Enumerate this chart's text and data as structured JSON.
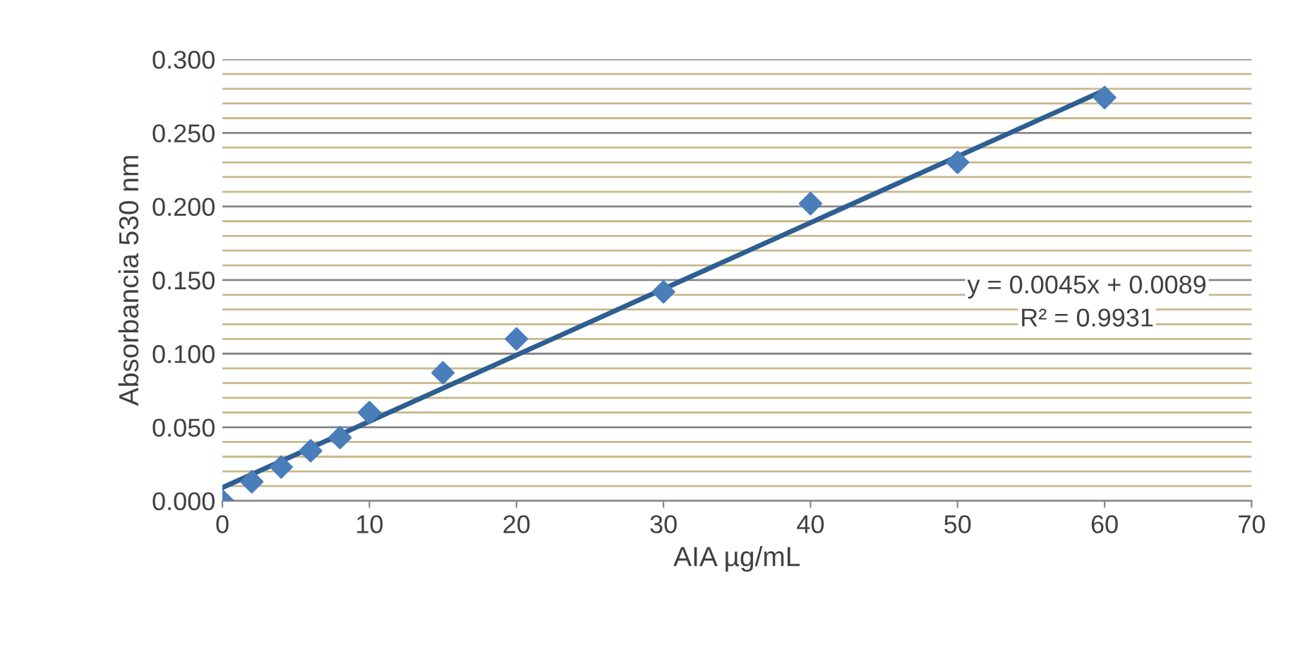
{
  "chart_data": {
    "type": "scatter",
    "xlabel": "AIA µg/mL",
    "ylabel": "Absorbancia 530 nm",
    "x": [
      0,
      2,
      4,
      6,
      8,
      10,
      15,
      20,
      30,
      40,
      50,
      60
    ],
    "series": [
      {
        "color": "#4a7ebb",
        "marker": "diamond",
        "values": [
          0.0,
          0.013,
          0.023,
          0.034,
          0.043,
          0.06,
          0.087,
          0.11,
          0.142,
          0.202,
          0.23,
          0.274
        ]
      },
      {
        "type": "line",
        "color": "#2e5e92",
        "marker": "none",
        "x": [
          0,
          60
        ],
        "values": [
          0.009,
          0.279
        ]
      }
    ],
    "annotations": [
      "y = 0.0045x + 0.0089",
      "R² = 0.9931"
    ],
    "xlim": [
      0,
      70
    ],
    "xticks": [
      0,
      10,
      20,
      30,
      40,
      50,
      60,
      70
    ],
    "ylim": [
      0,
      0.3
    ],
    "yticks": [
      {
        "value": 0,
        "label": "0.000"
      },
      {
        "value": 0.01,
        "label": null
      },
      {
        "value": 0.02,
        "label": null
      },
      {
        "value": 0.03,
        "label": null
      },
      {
        "value": 0.04,
        "label": null
      },
      {
        "value": 0.05,
        "label": "0.050"
      },
      {
        "value": 0.06,
        "label": null
      },
      {
        "value": 0.07,
        "label": null
      },
      {
        "value": 0.08,
        "label": null
      },
      {
        "value": 0.09,
        "label": null
      },
      {
        "value": 0.1,
        "label": "0.100"
      },
      {
        "value": 0.11,
        "label": null
      },
      {
        "value": 0.12,
        "label": null
      },
      {
        "value": 0.13,
        "label": null
      },
      {
        "value": 0.14,
        "label": null
      },
      {
        "value": 0.15,
        "label": "0.150"
      },
      {
        "value": 0.16,
        "label": null
      },
      {
        "value": 0.17,
        "label": null
      },
      {
        "value": 0.18,
        "label": null
      },
      {
        "value": 0.19,
        "label": null
      },
      {
        "value": 0.2,
        "label": "0.200"
      },
      {
        "value": 0.21,
        "label": null
      },
      {
        "value": 0.22,
        "label": null
      },
      {
        "value": 0.23,
        "label": null
      },
      {
        "value": 0.24,
        "label": null
      },
      {
        "value": 0.25,
        "label": "0.250"
      },
      {
        "value": 0.26,
        "label": null
      },
      {
        "value": 0.27,
        "label": null
      },
      {
        "value": 0.28,
        "label": null
      },
      {
        "value": 0.29,
        "label": null
      },
      {
        "value": 0.3,
        "label": "0.300"
      }
    ],
    "grid": "y",
    "legend": false
  }
}
